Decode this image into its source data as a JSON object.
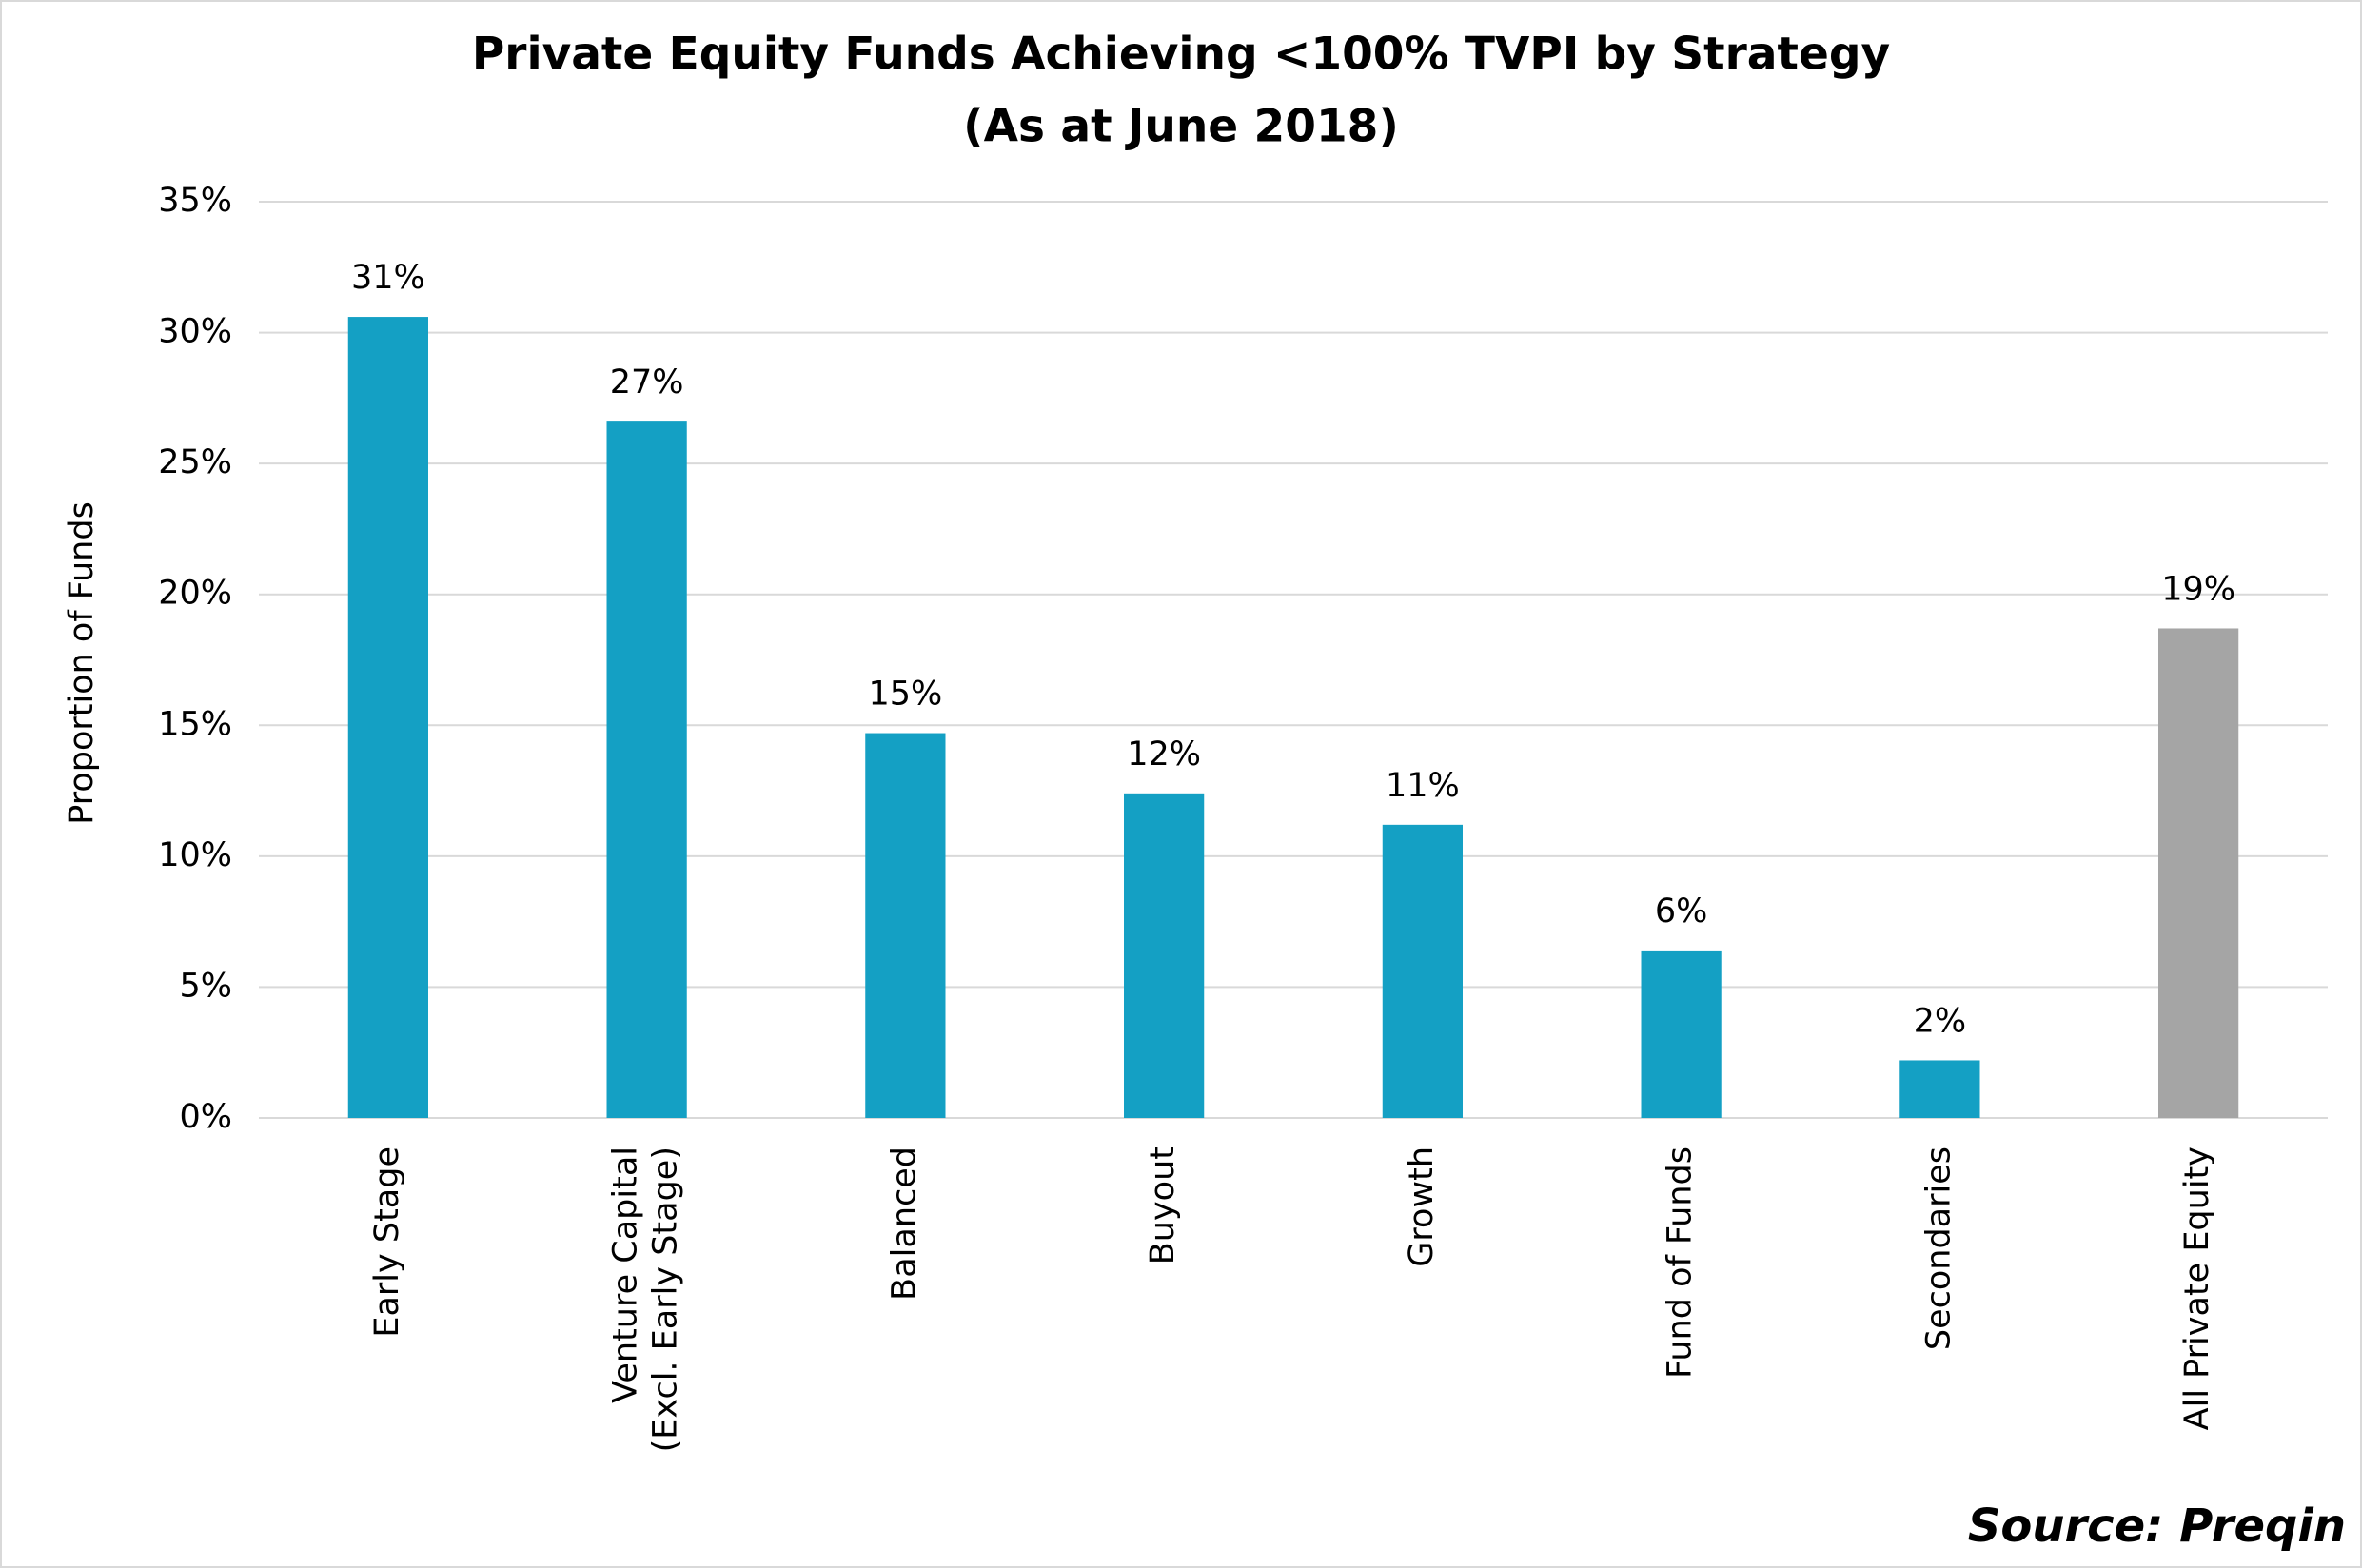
{
  "chart_data": {
    "type": "bar",
    "title": "Private Equity Funds Achieving <100% TVPI by Strategy",
    "subtitle": "(As at June 2018)",
    "y_label": "Proportion of Funds",
    "categories": [
      "Early Stage",
      "Venture Capital\n(Excl. Early Stage)",
      "Balanced",
      "Buyout",
      "Growth",
      "Fund of Funds",
      "Secondaries",
      "All Private Equity"
    ],
    "values": [
      30.6,
      26.6,
      14.7,
      12.4,
      11.2,
      6.4,
      2.2,
      18.7
    ],
    "value_labels": [
      "31%",
      "27%",
      "15%",
      "12%",
      "11%",
      "6%",
      "2%",
      "19%"
    ],
    "colors": [
      "#14a0c4",
      "#14a0c4",
      "#14a0c4",
      "#14a0c4",
      "#14a0c4",
      "#14a0c4",
      "#14a0c4",
      "#a5a5a5"
    ],
    "ylim": [
      0,
      35
    ],
    "yticks": [
      {
        "value": 0,
        "label": "0%"
      },
      {
        "value": 5,
        "label": "5%"
      },
      {
        "value": 10,
        "label": "10%"
      },
      {
        "value": 15,
        "label": "15%"
      },
      {
        "value": 20,
        "label": "20%"
      },
      {
        "value": 25,
        "label": "25%"
      },
      {
        "value": 30,
        "label": "30%"
      },
      {
        "value": 35,
        "label": "35%"
      }
    ],
    "grid": true,
    "source": "Source: Preqin"
  }
}
